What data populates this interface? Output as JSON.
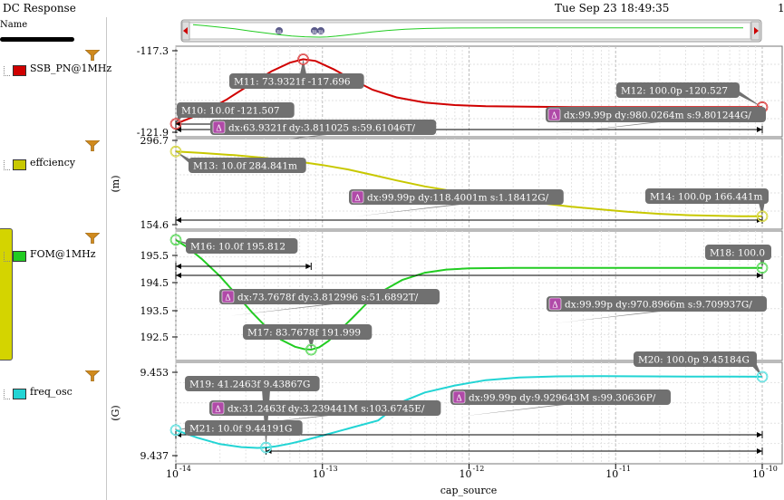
{
  "window": {
    "title": "DC Response",
    "datetime": "Tue Sep 23 18:49:35",
    "page": "1"
  },
  "sidebar": {
    "header": "Name",
    "traces": [
      {
        "name": "SSB_PN@1MHz",
        "color": "#d00000"
      },
      {
        "name": "effciency",
        "color": "#c8c800"
      },
      {
        "name": "FOM@1MHz",
        "color": "#22cc22"
      },
      {
        "name": "freq_osc",
        "color": "#22d4d4"
      }
    ]
  },
  "chart_data": {
    "type": "line",
    "x_scale": "log",
    "xlim": [
      1e-14,
      1e-10
    ],
    "xlabel": "cap_source",
    "x_ticks": [
      {
        "value": 1e-14,
        "mant": "10",
        "exp": "-14"
      },
      {
        "value": 1e-13,
        "mant": "10",
        "exp": "-13"
      },
      {
        "value": 1e-12,
        "mant": "10",
        "exp": "-12"
      },
      {
        "value": 1e-11,
        "mant": "10",
        "exp": "-11"
      },
      {
        "value": 1e-10,
        "mant": "10",
        "exp": "-10"
      }
    ],
    "panels": [
      {
        "trace": "SSB_PN@1MHz",
        "color": "#d00000",
        "ylabel": "",
        "ylim": [
          -121.9,
          -117.3
        ],
        "y_ticks": [
          "-117.3",
          "-121.9"
        ],
        "x": [
          1e-14,
          1.5e-14,
          2.2e-14,
          3.2e-14,
          4.5e-14,
          6e-14,
          7.39e-14,
          9e-14,
          1.2e-13,
          1.6e-13,
          2.2e-13,
          3.2e-13,
          5e-13,
          8e-13,
          1.3e-12,
          2.5e-12,
          5e-12,
          1e-11,
          2e-11,
          5e-11,
          1e-10
        ],
        "y": [
          -121.507,
          -120.9,
          -120.1,
          -119.2,
          -118.4,
          -117.9,
          -117.696,
          -117.8,
          -118.3,
          -118.9,
          -119.5,
          -119.95,
          -120.25,
          -120.4,
          -120.47,
          -120.5,
          -120.52,
          -120.525,
          -120.527,
          -120.527,
          -120.527
        ],
        "markers": [
          {
            "id": "M10",
            "text": "M10: 10.0f -121.507",
            "x": 1e-14,
            "y": -121.507
          },
          {
            "id": "M11",
            "text": "M11: 73.9321f -117.696",
            "x": 7.39321e-14,
            "y": -117.696
          },
          {
            "id": "M12",
            "text": "M12: 100.0p -120.527",
            "x": 1e-10,
            "y": -120.527
          }
        ],
        "deltas": [
          "dx:63.9321f dy:3.811025 s:59.61046T/",
          "dx:99.99p dy:980.0264m s:9.801244G/"
        ]
      },
      {
        "trace": "effciency",
        "color": "#c8c800",
        "ylabel": "(m)",
        "ylim": [
          154.6,
          296.7
        ],
        "y_ticks": [
          "296.7",
          "154.6"
        ],
        "x": [
          1e-14,
          1.5e-14,
          2.5e-14,
          4e-14,
          7e-14,
          1e-13,
          1.5e-13,
          2.2e-13,
          3.2e-13,
          5e-13,
          8e-13,
          1.3e-12,
          2e-12,
          3.2e-12,
          5e-12,
          8e-12,
          1.2e-11,
          2e-11,
          3.2e-11,
          5e-11,
          7e-11,
          1e-10
        ],
        "y": [
          284.841,
          282,
          278,
          273,
          266,
          260,
          252,
          242,
          232,
          221,
          212,
          204,
          197,
          190,
          184,
          179,
          175,
          171,
          168.5,
          167.3,
          166.7,
          166.441
        ],
        "markers": [
          {
            "id": "M13",
            "text": "M13: 10.0f 284.841m",
            "x": 1e-14,
            "y": 284.841
          },
          {
            "id": "M14",
            "text": "M14: 100.0p 166.441m",
            "x": 1e-10,
            "y": 166.441
          }
        ],
        "deltas": [
          "dx:99.99p dy:118.4001m s:1.18412G/"
        ]
      },
      {
        "trace": "FOM@1MHz",
        "color": "#22cc22",
        "ylabel": "",
        "ylim": [
          192.0,
          195.9
        ],
        "y_ticks": [
          "195.5",
          "194.5",
          "193.5",
          "192.5"
        ],
        "x": [
          1e-14,
          1.2e-14,
          1.5e-14,
          2e-14,
          2.6e-14,
          3.3e-14,
          4.2e-14,
          5.2e-14,
          6.5e-14,
          7.5e-14,
          8.38e-14,
          9.5e-14,
          1.1e-13,
          1.3e-13,
          1.6e-13,
          2e-13,
          2.6e-13,
          3.5e-13,
          5e-13,
          7e-13,
          1e-12,
          2e-12,
          5e-12,
          1e-11,
          2e-11,
          5e-11,
          1e-10
        ],
        "y": [
          195.812,
          195.55,
          195.15,
          194.55,
          193.9,
          193.3,
          192.75,
          192.35,
          192.1,
          192.02,
          191.999,
          192.08,
          192.3,
          192.65,
          193.1,
          193.6,
          194.05,
          194.42,
          194.67,
          194.78,
          194.82,
          194.84,
          194.84,
          194.84,
          194.84,
          194.84,
          194.841
        ],
        "markers": [
          {
            "id": "M16",
            "text": "M16: 10.0f 195.812",
            "x": 1e-14,
            "y": 195.812
          },
          {
            "id": "M17",
            "text": "M17: 83.7678f 191.999",
            "x": 8.37678e-14,
            "y": 191.999
          },
          {
            "id": "M18",
            "text": "M18: 100.0",
            "x": 1e-10,
            "y": 194.841
          }
        ],
        "deltas": [
          "dx:73.7678f dy:3.812996 s:51.6892T/",
          "dx:99.99p dy:970.8966m s:9.709937G/"
        ]
      },
      {
        "trace": "freq_osc",
        "color": "#22d4d4",
        "ylabel": "(G)",
        "ylim": [
          9.437,
          9.453
        ],
        "y_ticks": [
          "9.453",
          "9.437"
        ],
        "x": [
          1e-14,
          1.4e-14,
          2e-14,
          2.8e-14,
          3.6e-14,
          4.12e-14,
          4.8e-14,
          6e-14,
          8e-14,
          1.1e-13,
          1.6e-13,
          2.4e-13,
          3.5e-13,
          5e-13,
          8e-13,
          1.3e-12,
          2.2e-12,
          4e-12,
          8e-12,
          1.6e-11,
          3.2e-11,
          6e-11,
          1e-10
        ],
        "y": [
          9.44191,
          9.4405,
          9.4393,
          9.43875,
          9.4386,
          9.43867,
          9.4389,
          9.4394,
          9.4402,
          9.4412,
          9.4424,
          9.4437,
          9.4472,
          9.4489,
          9.4502,
          9.4512,
          9.4517,
          9.4519,
          9.45195,
          9.4519,
          9.45186,
          9.45185,
          9.45184
        ],
        "markers": [
          {
            "id": "M19",
            "text": "M19: 41.2463f 9.43867G",
            "x": 4.12463e-14,
            "y": 9.43867
          },
          {
            "id": "M20",
            "text": "M20: 100.0p 9.45184G",
            "x": 1e-10,
            "y": 9.45184
          },
          {
            "id": "M21",
            "text": "M21: 10.0f 9.44191G",
            "x": 1e-14,
            "y": 9.44191
          }
        ],
        "deltas": [
          "dx:31.2463f dy:3.239441M s:103.6745E/",
          "dx:99.99p dy:9.929643M s:99.30636P/"
        ]
      }
    ],
    "navigator": {
      "markers": [
        "m",
        "m",
        "m"
      ]
    }
  }
}
